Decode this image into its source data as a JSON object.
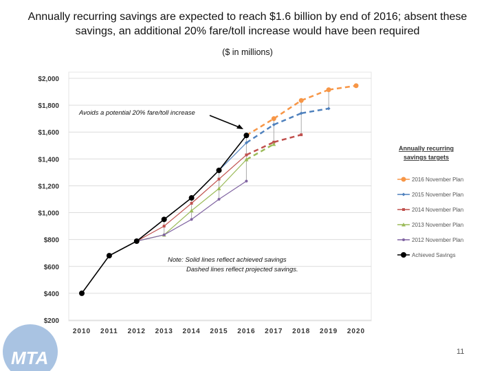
{
  "title": "Annually recurring savings are expected to reach $1.6 billion by end of 2016; absent these savings, an additional 20% fare/toll increase would have been required",
  "subtitle": "($ in millions)",
  "page_number": "11",
  "logo_text": "MTA",
  "chart_data": {
    "type": "line",
    "x": [
      2010,
      2011,
      2012,
      2013,
      2014,
      2015,
      2016,
      2017,
      2018,
      2019,
      2020
    ],
    "xlim": [
      2010,
      2020
    ],
    "ylim": [
      200,
      2000
    ],
    "yticks": [
      "$200",
      "$400",
      "$600",
      "$800",
      "$1,000",
      "$1,200",
      "$1,400",
      "$1,600",
      "$1,800",
      "$2,000"
    ],
    "xticks": [
      "2010",
      "2011",
      "2012",
      "2013",
      "2014",
      "2015",
      "2016",
      "2017",
      "2018",
      "2019",
      "2020"
    ],
    "grid": true,
    "legend_title": "Annually recurring savings targets",
    "legend_position": "right",
    "series": [
      {
        "name": "2016 November Plan",
        "color": "#f79646",
        "marker": "circle",
        "values": [
          null,
          null,
          null,
          null,
          null,
          null,
          1575,
          1700,
          1835,
          1915,
          1945
        ]
      },
      {
        "name": "2015 November Plan",
        "color": "#4f81bd",
        "marker": "diamond",
        "values": [
          null,
          null,
          788,
          950,
          1110,
          1315,
          1520,
          1655,
          1740,
          1775,
          null
        ]
      },
      {
        "name": "2014 November Plan",
        "color": "#c0504d",
        "marker": "square",
        "values": [
          null,
          null,
          788,
          900,
          1070,
          1250,
          1430,
          1525,
          1580,
          null,
          null
        ]
      },
      {
        "name": "2013 November Plan",
        "color": "#9bbb59",
        "marker": "triangle",
        "values": [
          null,
          null,
          788,
          835,
          1015,
          1180,
          1395,
          1510,
          null,
          null,
          null
        ]
      },
      {
        "name": "2012 November Plan",
        "color": "#8064a2",
        "marker": "cross",
        "values": [
          null,
          null,
          788,
          835,
          950,
          1100,
          1235,
          null,
          null,
          null,
          null
        ]
      },
      {
        "name": "Achieved Savings",
        "color": "#000000",
        "marker": "circle",
        "values": [
          400,
          680,
          788,
          950,
          1110,
          1315,
          1575,
          null,
          null,
          null,
          null
        ]
      }
    ],
    "annotations": [
      "Avoids a potential 20% fare/toll increase",
      "Note: Solid lines reflect achieved savings",
      "Dashed lines reflect projected savings."
    ]
  }
}
